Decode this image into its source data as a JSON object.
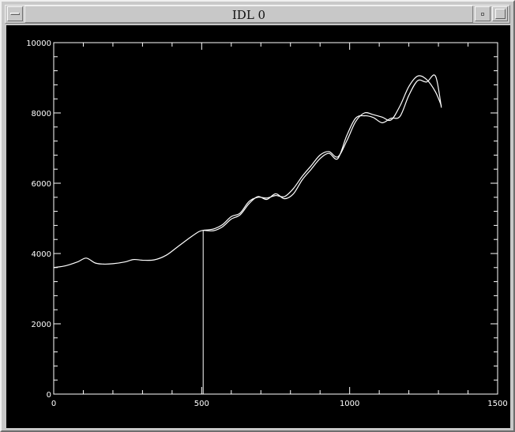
{
  "window": {
    "title": "IDL 0"
  },
  "colors": {
    "background": "#000000",
    "foreground": "#ffffff",
    "frame": "#c8c8c8"
  },
  "chart_data": {
    "type": "line",
    "title": "",
    "xlabel": "",
    "ylabel": "",
    "xlim": [
      0,
      1500
    ],
    "ylim": [
      0,
      10000
    ],
    "grid": false,
    "x_ticks": [
      0,
      500,
      1000,
      1500
    ],
    "x_tick_labels": [
      "0",
      "500",
      "1000",
      "1500"
    ],
    "y_ticks": [
      0,
      2000,
      4000,
      6000,
      8000,
      10000
    ],
    "y_tick_labels": [
      "0",
      "2000",
      "4000",
      "6000",
      "8000",
      "10000"
    ],
    "x_minor_step": 100,
    "y_minor_step": 400,
    "series": [
      {
        "x": [
          0,
          40,
          80,
          110,
          140,
          170,
          200,
          240,
          270,
          300,
          340,
          380,
          420,
          460,
          490,
          505
        ],
        "values": [
          3600,
          3650,
          3760,
          3870,
          3730,
          3700,
          3710,
          3760,
          3830,
          3810,
          3820,
          3950,
          4200,
          4450,
          4620,
          4660
        ]
      },
      {
        "x": [
          505,
          540,
          570,
          600,
          630,
          660,
          690,
          720,
          750,
          780,
          810,
          840,
          870,
          900,
          930,
          960,
          990,
          1020,
          1050,
          1080,
          1110,
          1140,
          1170,
          1200,
          1230,
          1260,
          1290,
          1310
        ],
        "values": [
          4660,
          4700,
          4820,
          5050,
          5150,
          5480,
          5600,
          5580,
          5650,
          5620,
          5850,
          6200,
          6500,
          6800,
          6900,
          6750,
          7200,
          7750,
          8000,
          7950,
          7880,
          7800,
          8200,
          8750,
          9050,
          8950,
          8600,
          8200
        ]
      },
      {
        "x": [
          505,
          540,
          570,
          600,
          630,
          660,
          690,
          720,
          750,
          780,
          810,
          840,
          870,
          900,
          930,
          960,
          990,
          1020,
          1050,
          1080,
          1110,
          1140,
          1170,
          1200,
          1230,
          1260,
          1290,
          1310
        ],
        "values": [
          4660,
          4650,
          4760,
          4980,
          5100,
          5420,
          5620,
          5540,
          5700,
          5560,
          5700,
          6100,
          6400,
          6700,
          6850,
          6700,
          7350,
          7850,
          7920,
          7870,
          7720,
          7850,
          7900,
          8500,
          8920,
          8880,
          9050,
          8150
        ]
      }
    ],
    "annotations": [
      {
        "type": "vline",
        "x": 505,
        "y_from": 0,
        "y_to": 4660
      }
    ]
  }
}
